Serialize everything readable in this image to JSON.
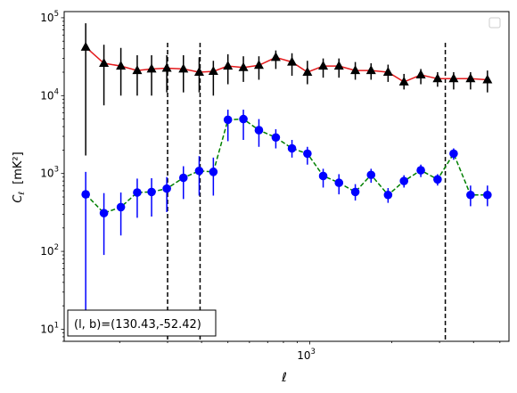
{
  "chart_data": {
    "type": "scatter",
    "xscale": "log",
    "yscale": "log",
    "xlim": [
      125,
      5400
    ],
    "ylim": [
      7,
      120000
    ],
    "xlabel": "ℓ",
    "ylabel": "C",
    "ylabel_sub": "ℓ",
    "ylabel_unit": "[mK²]",
    "yticks": [
      {
        "value": 10,
        "base": "10",
        "exp": "1"
      },
      {
        "value": 100,
        "base": "10",
        "exp": "2"
      },
      {
        "value": 1000,
        "base": "10",
        "exp": "3"
      },
      {
        "value": 10000,
        "base": "10",
        "exp": "4"
      },
      {
        "value": 100000,
        "base": "10",
        "exp": "5"
      }
    ],
    "xticks": [
      {
        "value": 1000,
        "base": "10",
        "exp": "3"
      }
    ],
    "grid": false,
    "legend": "top-right (empty)",
    "vlines": [
      300,
      395,
      3150
    ],
    "annotation": "(l, b)=(130.43,-52.42)",
    "series": [
      {
        "marker": "triangle",
        "color": "#000000",
        "line_color": "#e41a1c",
        "line_style": "solid",
        "x": [
          150,
          175,
          202,
          232,
          262,
          298,
          343,
          392,
          442,
          500,
          570,
          650,
          750,
          860,
          980,
          1120,
          1280,
          1470,
          1680,
          1940,
          2220,
          2560,
          2950,
          3380,
          3900,
          4500
        ],
        "y": [
          42000,
          26000,
          24000,
          21000,
          22000,
          22500,
          22000,
          20000,
          20500,
          24000,
          23000,
          24500,
          31000,
          27000,
          20000,
          24000,
          24000,
          21000,
          21000,
          20000,
          15000,
          18500,
          16500,
          16500,
          16500,
          16000
        ],
        "yerr_lo": [
          1700,
          7500,
          10000,
          10000,
          10000,
          11000,
          11000,
          11000,
          10000,
          14000,
          15000,
          16000,
          22000,
          18000,
          14000,
          17000,
          17000,
          16000,
          16000,
          15000,
          12000,
          14000,
          13000,
          12000,
          12000,
          11000
        ],
        "yerr_hi": [
          85000,
          45000,
          41000,
          33000,
          33000,
          33000,
          33000,
          31000,
          28000,
          34000,
          32000,
          32000,
          38000,
          35000,
          28000,
          30000,
          30000,
          27000,
          26000,
          25000,
          19000,
          22000,
          20000,
          20000,
          20000,
          21000
        ]
      },
      {
        "marker": "circle",
        "color": "#0000ff",
        "line_color": "#008000",
        "line_style": "dashed",
        "x": [
          150,
          175,
          202,
          232,
          262,
          298,
          343,
          392,
          442,
          500,
          570,
          650,
          750,
          860,
          980,
          1120,
          1280,
          1470,
          1680,
          1940,
          2220,
          2560,
          2950,
          3380,
          3900,
          4500
        ],
        "y": [
          540,
          310,
          370,
          570,
          580,
          640,
          880,
          1080,
          1050,
          4900,
          5000,
          3600,
          2900,
          2100,
          1800,
          930,
          760,
          580,
          960,
          530,
          800,
          1100,
          840,
          1800,
          530,
          530
        ],
        "yerr_lo": [
          15,
          90,
          160,
          270,
          280,
          320,
          470,
          520,
          520,
          2600,
          2700,
          2200,
          2100,
          1600,
          1300,
          660,
          540,
          450,
          760,
          420,
          660,
          900,
          700,
          1500,
          380,
          380
        ],
        "yerr_hi": [
          1050,
          560,
          570,
          860,
          870,
          900,
          1240,
          1670,
          1600,
          6600,
          6600,
          5000,
          3700,
          2700,
          2200,
          1150,
          980,
          730,
          1150,
          650,
          950,
          1300,
          980,
          2100,
          700,
          700
        ]
      }
    ]
  }
}
